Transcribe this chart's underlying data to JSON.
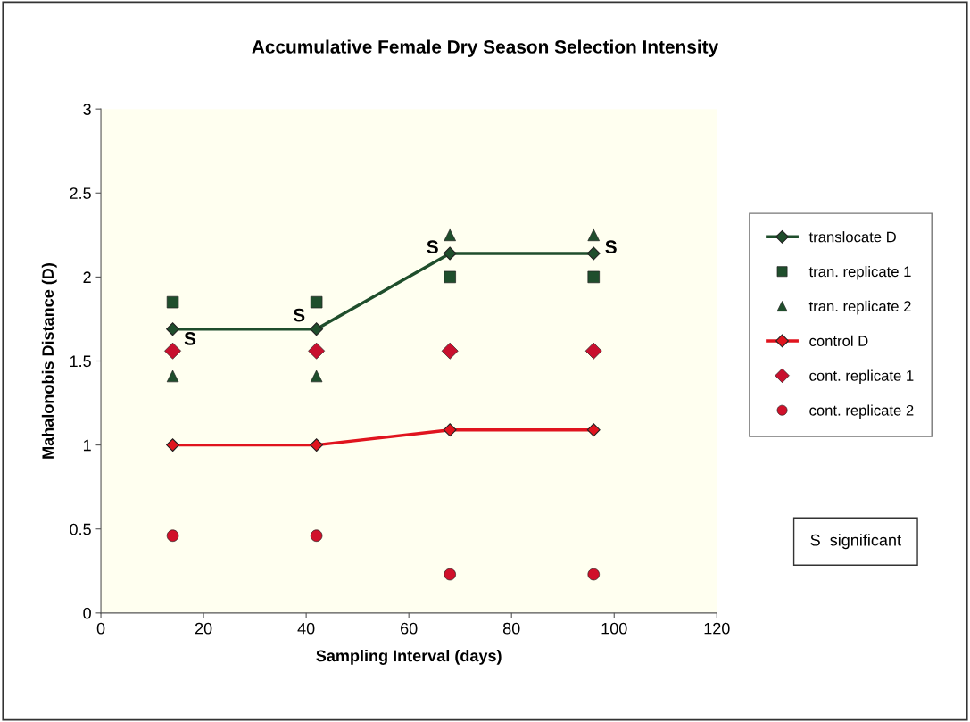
{
  "chart_data": {
    "type": "line",
    "title": "Accumulative Female Dry Season Selection Intensity",
    "xlabel": "Sampling Interval (days)",
    "ylabel": "Mahalonobis Distance (D)",
    "x": [
      14,
      42,
      68,
      96
    ],
    "series": [
      {
        "name": "translocate D",
        "marker": "diamond",
        "color": "#1f4e2c",
        "values": [
          1.69,
          1.69,
          2.14,
          2.14
        ]
      },
      {
        "name": "tran. replicate 1",
        "type": "scatter",
        "marker": "square",
        "color": "#1f4e2c",
        "values": [
          1.85,
          1.85,
          2.0,
          2.0
        ]
      },
      {
        "name": "tran. replicate 2",
        "type": "scatter",
        "marker": "triangle",
        "color": "#1f4e2c",
        "values": [
          1.41,
          1.41,
          2.25,
          2.25
        ]
      },
      {
        "name": "control D",
        "marker": "diamond",
        "color": "#e0141e",
        "values": [
          1.0,
          1.0,
          1.09,
          1.09
        ]
      },
      {
        "name": "cont. replicate 1",
        "type": "scatter",
        "marker": "diamond",
        "color": "#c8102e",
        "values": [
          1.56,
          1.56,
          1.56,
          1.56
        ]
      },
      {
        "name": "cont. replicate 2",
        "type": "scatter",
        "marker": "circle",
        "color": "#d0102a",
        "values": [
          0.46,
          0.46,
          0.23,
          0.23
        ]
      }
    ],
    "annotations": [
      {
        "text": "S",
        "x": 14,
        "y": 1.69
      },
      {
        "text": "S",
        "x": 42,
        "y": 1.69
      },
      {
        "text": "S",
        "x": 68,
        "y": 2.14
      },
      {
        "text": "S",
        "x": 96,
        "y": 2.14
      },
      "S  significant"
    ],
    "xlim": [
      0,
      120
    ],
    "xticks": [
      0,
      20,
      40,
      60,
      80,
      100,
      120
    ],
    "ylim": [
      0,
      3
    ],
    "yticks": [
      0,
      0.5,
      1,
      1.5,
      2,
      2.5,
      3
    ],
    "grid": false,
    "legend": "right"
  }
}
